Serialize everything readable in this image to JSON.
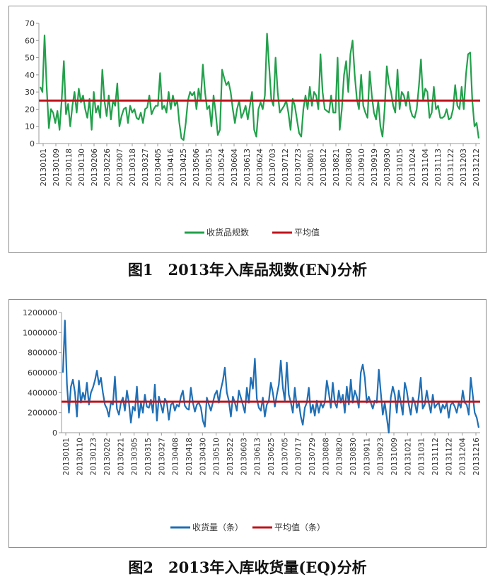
{
  "chart_data": [
    {
      "type": "line",
      "caption": "图1　2013年入库品规数(EN)分析",
      "ylim": [
        0,
        70
      ],
      "yticks": [
        "0",
        "10",
        "20",
        "30",
        "40",
        "50",
        "60",
        "70"
      ],
      "x_ticks": [
        "20130101",
        "20130109",
        "20130118",
        "20130130",
        "20130206",
        "20130226",
        "20130307",
        "20130318",
        "20130327",
        "20130405",
        "20130416",
        "20130425",
        "20130506",
        "20130515",
        "20130524",
        "20130604",
        "20130613",
        "20130624",
        "20130703",
        "20130712",
        "20130723",
        "20130801",
        "20130812",
        "20130821",
        "20130830",
        "20130910",
        "20130919",
        "20130930",
        "20131015",
        "20131024",
        "20131104",
        "20131113",
        "20131122",
        "20131203",
        "20131212"
      ],
      "colors": {
        "series": "#22a04b",
        "average": "#c0141c"
      },
      "series": [
        {
          "name": "收货品规数",
          "values": [
            33,
            30,
            63,
            32,
            9,
            20,
            18,
            12,
            19,
            8,
            25,
            48,
            17,
            23,
            10,
            22,
            30,
            18,
            32,
            24,
            28,
            20,
            15,
            26,
            8,
            30,
            18,
            22,
            15,
            43,
            25,
            16,
            28,
            14,
            25,
            22,
            35,
            10,
            16,
            20,
            21,
            12,
            22,
            18,
            20,
            15,
            14,
            18,
            12,
            20,
            21,
            28,
            17,
            20,
            22,
            22,
            41,
            20,
            22,
            18,
            30,
            20,
            28,
            22,
            25,
            12,
            3,
            2,
            12,
            25,
            30,
            28,
            30,
            20,
            32,
            25,
            46,
            30,
            20,
            22,
            10,
            28,
            18,
            5,
            8,
            43,
            38,
            34,
            36,
            30,
            20,
            12,
            20,
            25,
            15,
            18,
            22,
            14,
            22,
            30,
            8,
            4,
            20,
            24,
            20,
            28,
            64,
            45,
            26,
            22,
            50,
            30,
            18,
            20,
            22,
            25,
            18,
            8,
            26,
            22,
            14,
            6,
            4,
            20,
            28,
            20,
            33,
            22,
            30,
            28,
            20,
            52,
            30,
            20,
            19,
            18,
            28,
            18,
            18,
            50,
            8,
            20,
            40,
            48,
            30,
            52,
            60,
            40,
            26,
            20,
            40,
            22,
            18,
            15,
            42,
            28,
            18,
            14,
            25,
            10,
            4,
            20,
            45,
            35,
            30,
            22,
            18,
            43,
            20,
            30,
            28,
            22,
            30,
            20,
            16,
            15,
            20,
            33,
            49,
            25,
            32,
            30,
            15,
            18,
            33,
            20,
            22,
            15,
            15,
            16,
            20,
            14,
            15,
            20,
            34,
            22,
            20,
            33,
            20,
            40,
            52,
            53,
            25,
            10,
            12,
            3
          ]
        },
        {
          "name": "平均值",
          "value": 25
        }
      ]
    },
    {
      "type": "line",
      "caption": "图2　2013年入库收货量(EQ)分析",
      "ylim": [
        0,
        1200000
      ],
      "yticks": [
        "0",
        "200000",
        "400000",
        "600000",
        "800000",
        "1000000",
        "1200000"
      ],
      "x_ticks": [
        "20130101",
        "20130110",
        "20130123",
        "20130202",
        "20130221",
        "20130305",
        "20130315",
        "20130327",
        "20130408",
        "20130418",
        "20130430",
        "20130510",
        "20130522",
        "20130603",
        "20130613",
        "20130625",
        "20130705",
        "20130717",
        "20130729",
        "20130808",
        "20130820",
        "20130830",
        "20130911",
        "20130923",
        "20131009",
        "20131021",
        "20131031",
        "20131112",
        "20131122",
        "20131204",
        "20131216"
      ],
      "colors": {
        "series": "#1f6fb5",
        "average": "#c0141c"
      },
      "series": [
        {
          "name": "收货量（条）",
          "values": [
            600000,
            1120000,
            480000,
            200000,
            460000,
            530000,
            400000,
            160000,
            520000,
            300000,
            400000,
            330000,
            500000,
            280000,
            400000,
            450000,
            520000,
            620000,
            480000,
            550000,
            400000,
            280000,
            240000,
            160000,
            300000,
            280000,
            560000,
            240000,
            180000,
            300000,
            350000,
            220000,
            420000,
            300000,
            100000,
            260000,
            220000,
            460000,
            150000,
            300000,
            200000,
            380000,
            260000,
            250000,
            330000,
            200000,
            480000,
            120000,
            360000,
            280000,
            200000,
            340000,
            300000,
            130000,
            280000,
            300000,
            220000,
            280000,
            260000,
            360000,
            420000,
            270000,
            240000,
            230000,
            450000,
            300000,
            210000,
            280000,
            300000,
            250000,
            120000,
            60000,
            350000,
            280000,
            220000,
            300000,
            380000,
            420000,
            300000,
            430000,
            520000,
            650000,
            400000,
            320000,
            160000,
            360000,
            300000,
            220000,
            420000,
            350000,
            280000,
            200000,
            450000,
            300000,
            550000,
            440000,
            740000,
            340000,
            250000,
            220000,
            350000,
            160000,
            280000,
            320000,
            500000,
            400000,
            260000,
            380000,
            480000,
            720000,
            450000,
            320000,
            700000,
            380000,
            300000,
            200000,
            450000,
            250000,
            300000,
            160000,
            80000,
            250000,
            300000,
            450000,
            200000,
            280000,
            170000,
            320000,
            200000,
            300000,
            250000,
            300000,
            520000,
            400000,
            250000,
            500000,
            300000,
            250000,
            420000,
            300000,
            380000,
            200000,
            460000,
            280000,
            530000,
            300000,
            420000,
            360000,
            250000,
            600000,
            680000,
            550000,
            300000,
            360000,
            300000,
            240000,
            320000,
            300000,
            630000,
            400000,
            180000,
            300000,
            150000,
            0,
            350000,
            460000,
            380000,
            200000,
            420000,
            300000,
            180000,
            500000,
            420000,
            280000,
            180000,
            350000,
            300000,
            200000,
            360000,
            550000,
            240000,
            280000,
            420000,
            300000,
            200000,
            380000,
            250000,
            280000,
            300000,
            200000,
            280000,
            240000,
            300000,
            150000,
            280000,
            300000,
            260000,
            200000,
            300000,
            250000,
            420000,
            300000,
            280000,
            180000,
            550000,
            380000,
            200000,
            150000,
            50000
          ]
        },
        {
          "name": "平均值（条）",
          "value": 310000
        }
      ]
    }
  ]
}
